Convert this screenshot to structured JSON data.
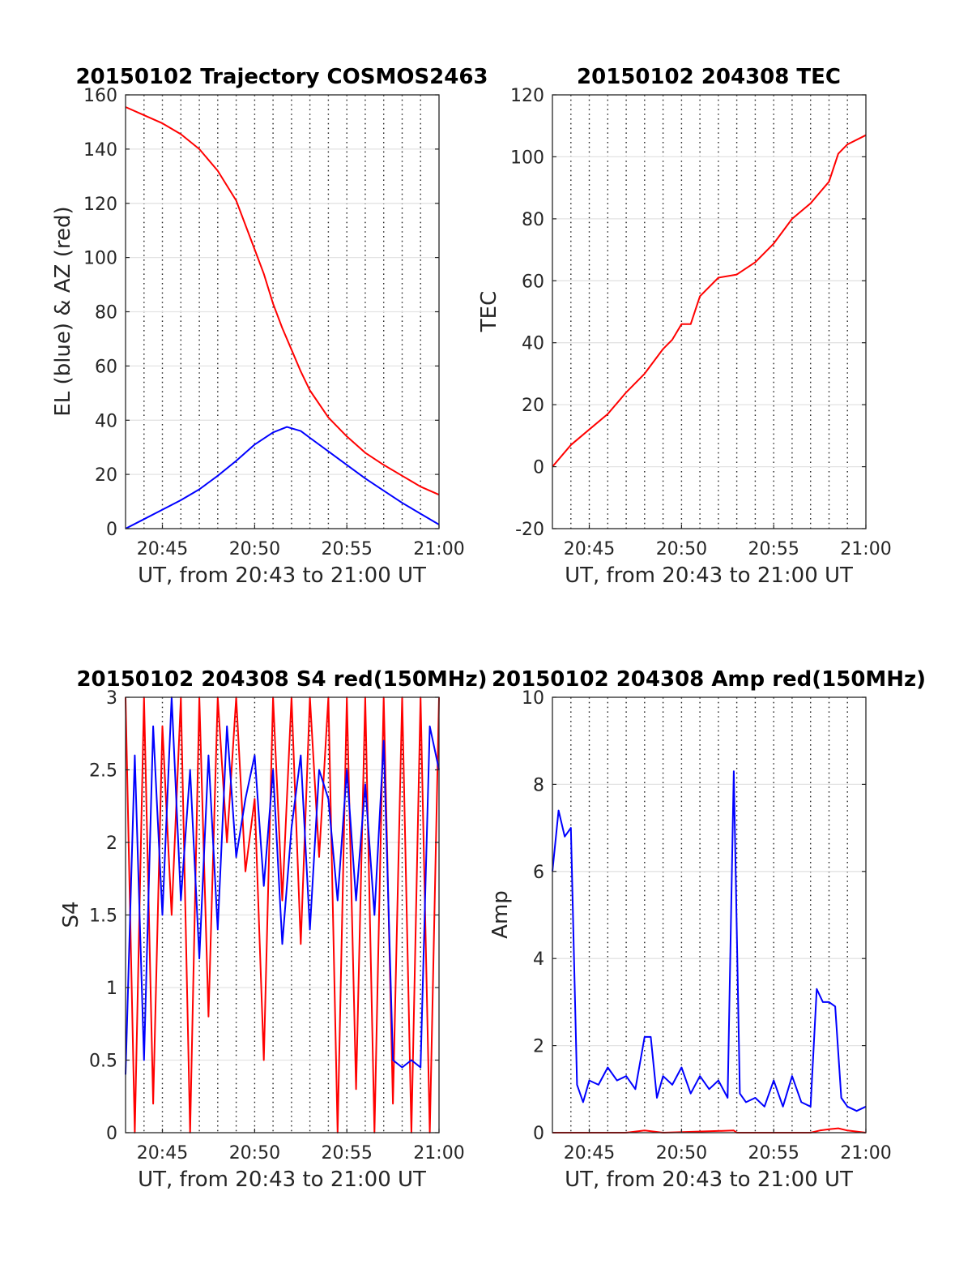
{
  "chart_data": [
    {
      "type": "line",
      "title": "20150102 Trajectory COSMOS2463",
      "xlabel": "UT, from 20:43 to 21:00 UT",
      "ylabel": "EL (blue) & AZ (red)",
      "xlim": [
        "20:43",
        "21:00"
      ],
      "ylim": [
        0,
        160
      ],
      "x_ticks": [
        "20:45",
        "20:50",
        "20:55",
        "21:00"
      ],
      "y_ticks": [
        "0",
        "20",
        "40",
        "60",
        "80",
        "100",
        "120",
        "140",
        "160"
      ],
      "grid": "x dotted every minute, y solid light",
      "series": [
        {
          "color": "#ff0000",
          "x": [
            "20:43",
            "20:44",
            "20:45",
            "20:46",
            "20:47",
            "20:48",
            "20:49",
            "20:50",
            "20:50:30",
            "20:51",
            "20:51:30",
            "20:52",
            "20:52:30",
            "20:53",
            "20:54",
            "20:55",
            "20:56",
            "20:57",
            "20:58",
            "20:59",
            "21:00"
          ],
          "values": [
            155.5,
            152.5,
            149.5,
            145.5,
            140,
            132,
            121,
            103,
            94,
            83,
            74,
            66,
            58,
            51,
            41,
            34,
            28,
            23.5,
            19.5,
            15.5,
            12.5
          ]
        },
        {
          "color": "#0000ff",
          "x": [
            "20:43",
            "20:44",
            "20:45",
            "20:46",
            "20:47",
            "20:48",
            "20:49",
            "20:50",
            "20:51",
            "20:51:45",
            "20:52:30",
            "20:53",
            "20:54",
            "20:55",
            "20:56",
            "20:57",
            "20:58",
            "20:59",
            "21:00"
          ],
          "values": [
            0,
            3.5,
            7,
            10.5,
            14.5,
            19.5,
            25,
            31,
            35.5,
            37.5,
            36,
            33.5,
            28.5,
            23.5,
            18.5,
            14,
            9.5,
            5.5,
            1.5
          ]
        }
      ]
    },
    {
      "type": "line",
      "title": "20150102 204308 TEC",
      "xlabel": "UT, from 20:43 to 21:00 UT",
      "ylabel": "TEC",
      "xlim": [
        "20:43",
        "21:00"
      ],
      "ylim": [
        -20,
        120
      ],
      "x_ticks": [
        "20:45",
        "20:50",
        "20:55",
        "21:00"
      ],
      "y_ticks": [
        "-20",
        "0",
        "20",
        "40",
        "60",
        "80",
        "100",
        "120"
      ],
      "grid": "x dotted every minute, y solid light",
      "series": [
        {
          "color": "#ff0000",
          "x": [
            "20:43",
            "20:44",
            "20:45",
            "20:46",
            "20:47",
            "20:48",
            "20:49",
            "20:49:30",
            "20:50",
            "20:50:30",
            "20:51",
            "20:52",
            "20:53",
            "20:54",
            "20:55",
            "20:56",
            "20:57",
            "20:58",
            "20:58:30",
            "20:59",
            "21:00"
          ],
          "values": [
            0,
            7,
            12,
            17,
            24,
            30,
            38,
            41,
            46,
            46,
            55,
            61,
            62,
            66,
            72,
            80,
            85,
            92,
            101,
            104,
            107
          ]
        }
      ]
    },
    {
      "type": "line",
      "title": "20150102 204308 S4 red(150MHz)",
      "xlabel": "UT, from 20:43 to 21:00 UT",
      "ylabel": "S4",
      "xlim": [
        "20:43",
        "21:00"
      ],
      "ylim": [
        0,
        3
      ],
      "x_ticks": [
        "20:45",
        "20:50",
        "20:55",
        "21:00"
      ],
      "y_ticks": [
        "0",
        "0.5",
        "1",
        "1.5",
        "2",
        "2.5",
        "3"
      ],
      "grid": "x dotted every minute, y solid light",
      "series": [
        {
          "color": "#ff0000",
          "x": [
            "20:43",
            "20:43:30",
            "20:44",
            "20:44:30",
            "20:45",
            "20:45:30",
            "20:46",
            "20:46:30",
            "20:47",
            "20:47:30",
            "20:48",
            "20:48:30",
            "20:49",
            "20:49:30",
            "20:50",
            "20:50:30",
            "20:51",
            "20:51:30",
            "20:52",
            "20:52:30",
            "20:53",
            "20:53:30",
            "20:54",
            "20:54:30",
            "20:55",
            "20:55:30",
            "20:56",
            "20:56:30",
            "20:57",
            "20:57:30",
            "20:58",
            "20:58:30",
            "20:59",
            "20:59:30",
            "21:00"
          ],
          "values": [
            3,
            0,
            3,
            0.2,
            2.8,
            1.5,
            3,
            0,
            3,
            0.8,
            3,
            2,
            3,
            1.8,
            2.3,
            0.5,
            3,
            1.6,
            3,
            1.3,
            3,
            1.9,
            3,
            0,
            3,
            0.3,
            3,
            0,
            3,
            0.2,
            3,
            0,
            3,
            0,
            3
          ]
        },
        {
          "color": "#0000ff",
          "x": [
            "20:43",
            "20:43:30",
            "20:44",
            "20:44:30",
            "20:45",
            "20:45:30",
            "20:46",
            "20:46:30",
            "20:47",
            "20:47:30",
            "20:48",
            "20:48:30",
            "20:49",
            "20:49:30",
            "20:50",
            "20:50:30",
            "20:51",
            "20:51:30",
            "20:52",
            "20:52:30",
            "20:53",
            "20:53:30",
            "20:54",
            "20:54:30",
            "20:55",
            "20:55:30",
            "20:56",
            "20:56:30",
            "20:57",
            "20:57:30",
            "20:58",
            "20:58:30",
            "20:59",
            "20:59:30",
            "21:00"
          ],
          "values": [
            0.4,
            2.6,
            0.5,
            2.8,
            1.5,
            3,
            1.6,
            2.5,
            1.2,
            2.6,
            1.4,
            2.8,
            1.9,
            2.3,
            2.6,
            1.7,
            2.5,
            1.3,
            2.1,
            2.6,
            1.4,
            2.5,
            2.3,
            1.6,
            2.5,
            1.6,
            2.4,
            1.5,
            2.7,
            0.5,
            0.45,
            0.5,
            0.45,
            2.8,
            2.5
          ]
        }
      ]
    },
    {
      "type": "line",
      "title": "20150102 204308 Amp red(150MHz)",
      "xlabel": "UT, from 20:43 to 21:00 UT",
      "ylabel": "Amp",
      "xlim": [
        "20:43",
        "21:00"
      ],
      "ylim": [
        0,
        10
      ],
      "x_ticks": [
        "20:45",
        "20:50",
        "20:55",
        "21:00"
      ],
      "y_ticks": [
        "0",
        "2",
        "4",
        "6",
        "8",
        "10"
      ],
      "grid": "x dotted every minute, y solid light",
      "series": [
        {
          "color": "#0000ff",
          "x": [
            "20:43",
            "20:43:20",
            "20:43:40",
            "20:44",
            "20:44:20",
            "20:44:40",
            "20:45",
            "20:45:30",
            "20:46",
            "20:46:30",
            "20:47",
            "20:47:30",
            "20:48",
            "20:48:20",
            "20:48:40",
            "20:49",
            "20:49:30",
            "20:50",
            "20:50:30",
            "20:51",
            "20:51:30",
            "20:52",
            "20:52:30",
            "20:52:50",
            "20:53:10",
            "20:53:30",
            "20:54",
            "20:54:30",
            "20:55",
            "20:55:30",
            "20:56",
            "20:56:30",
            "20:57",
            "20:57:20",
            "20:57:40",
            "20:58",
            "20:58:20",
            "20:58:40",
            "20:59",
            "20:59:30",
            "21:00"
          ],
          "values": [
            6,
            7.4,
            6.8,
            7,
            1.1,
            0.7,
            1.2,
            1.1,
            1.5,
            1.2,
            1.3,
            1,
            2.2,
            2.2,
            0.8,
            1.3,
            1.1,
            1.5,
            0.9,
            1.3,
            1,
            1.2,
            0.8,
            8.3,
            0.9,
            0.7,
            0.8,
            0.6,
            1.2,
            0.6,
            1.3,
            0.7,
            0.6,
            3.3,
            3,
            3,
            2.9,
            0.8,
            0.6,
            0.5,
            0.6
          ]
        },
        {
          "color": "#ff0000",
          "x": [
            "20:43",
            "20:47",
            "20:48",
            "20:49",
            "20:52:50",
            "20:53",
            "20:57",
            "20:57:30",
            "20:58",
            "20:58:30",
            "20:59",
            "21:00"
          ],
          "values": [
            0,
            0,
            0.05,
            0,
            0.05,
            0,
            0,
            0.05,
            0.08,
            0.1,
            0.05,
            0
          ]
        }
      ]
    }
  ]
}
